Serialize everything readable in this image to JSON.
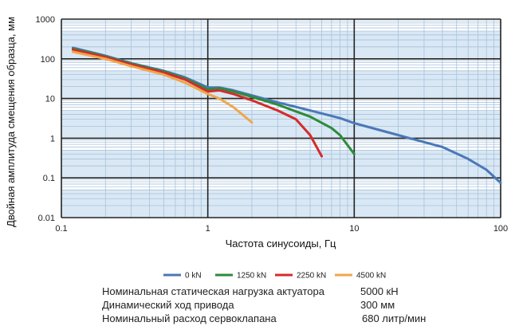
{
  "chart_data": {
    "type": "line",
    "xscale": "log",
    "yscale": "log",
    "xlim": [
      0.1,
      100
    ],
    "ylim": [
      0.01,
      1000
    ],
    "xlabel": "Частота синусоиды, Гц",
    "ylabel": "Двойная амплитуда смещения образца, мм",
    "x_ticks": [
      "0.1",
      "1",
      "10",
      "100"
    ],
    "y_ticks": [
      "0.01",
      "0.1",
      "1",
      "10",
      "100",
      "1000"
    ],
    "grid": true,
    "legend_position": "bottom",
    "series": [
      {
        "name": "0 kN",
        "color": "#4a78b8",
        "points": [
          [
            0.12,
            190
          ],
          [
            0.2,
            120
          ],
          [
            0.3,
            78
          ],
          [
            0.5,
            50
          ],
          [
            0.7,
            34
          ],
          [
            1.0,
            19
          ],
          [
            1.2,
            19
          ],
          [
            1.5,
            16
          ],
          [
            2,
            12
          ],
          [
            3,
            8
          ],
          [
            5,
            5
          ],
          [
            8,
            3.2
          ],
          [
            10,
            2.4
          ],
          [
            20,
            1.2
          ],
          [
            40,
            0.6
          ],
          [
            60,
            0.3
          ],
          [
            80,
            0.16
          ],
          [
            100,
            0.075
          ]
        ]
      },
      {
        "name": "1250 kN",
        "color": "#2e8b3a",
        "points": [
          [
            0.12,
            180
          ],
          [
            0.2,
            115
          ],
          [
            0.3,
            75
          ],
          [
            0.5,
            48
          ],
          [
            0.7,
            32
          ],
          [
            1.0,
            17
          ],
          [
            1.2,
            18
          ],
          [
            1.5,
            15
          ],
          [
            2,
            11
          ],
          [
            3,
            7
          ],
          [
            5,
            3.5
          ],
          [
            7,
            1.8
          ],
          [
            8,
            1.2
          ],
          [
            10,
            0.4
          ]
        ]
      },
      {
        "name": "2250 kN",
        "color": "#d42b2b",
        "points": [
          [
            0.12,
            170
          ],
          [
            0.2,
            110
          ],
          [
            0.3,
            72
          ],
          [
            0.5,
            45
          ],
          [
            0.7,
            30
          ],
          [
            1.0,
            15
          ],
          [
            1.2,
            16
          ],
          [
            1.5,
            13
          ],
          [
            2,
            9
          ],
          [
            3,
            5
          ],
          [
            4,
            3
          ],
          [
            5,
            1.2
          ],
          [
            6,
            0.35
          ]
        ]
      },
      {
        "name": "4500 kN",
        "color": "#f0a64a",
        "points": [
          [
            0.12,
            150
          ],
          [
            0.2,
            100
          ],
          [
            0.3,
            65
          ],
          [
            0.5,
            40
          ],
          [
            0.7,
            25
          ],
          [
            1.0,
            13
          ],
          [
            1.2,
            10
          ],
          [
            1.5,
            6
          ],
          [
            2,
            2.5
          ]
        ]
      }
    ]
  },
  "specs": [
    {
      "label": "Номинальная статическая нагрузка актуатора",
      "value": "5000 кН"
    },
    {
      "label": "Динамический ход привода",
      "value": "300 мм"
    },
    {
      "label": "Номинальный расход сервоклапана",
      "value": "680 литр/мин"
    }
  ]
}
